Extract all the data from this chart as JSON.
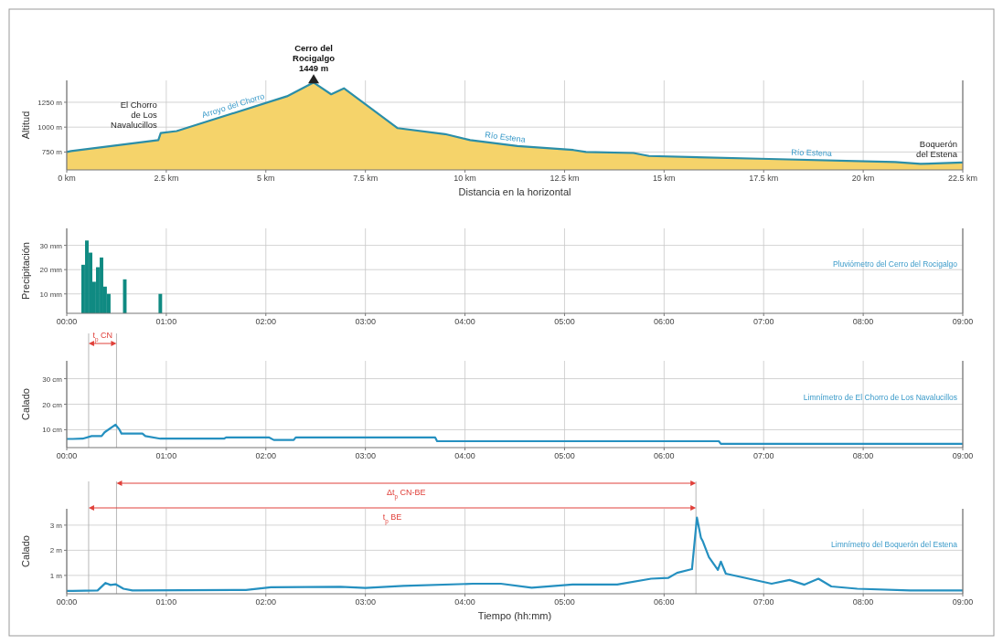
{
  "chart_data": [
    {
      "type": "area",
      "ylabel": "Altitud",
      "xlabel": "Distancia en la horizontal",
      "xlim": [
        0,
        22.5
      ],
      "ylim": [
        570,
        1470
      ],
      "xticks": [
        {
          "value": 0,
          "label": "0 km"
        },
        {
          "value": 2.5,
          "label": "2.5 km"
        },
        {
          "value": 5,
          "label": "5 km"
        },
        {
          "value": 7.5,
          "label": "7.5 km"
        },
        {
          "value": 10,
          "label": "10 km"
        },
        {
          "value": 12.5,
          "label": "12.5 km"
        },
        {
          "value": 15,
          "label": "15 km"
        },
        {
          "value": 17.5,
          "label": "17.5 km"
        },
        {
          "value": 20,
          "label": "20 km"
        },
        {
          "value": 22.5,
          "label": "22.5 km"
        }
      ],
      "yticks": [
        {
          "value": 750,
          "label": "750 m"
        },
        {
          "value": 1000,
          "label": "1000 m"
        },
        {
          "value": 1250,
          "label": "1250 m"
        }
      ],
      "grid": true,
      "x": [
        0,
        0.11,
        2.3,
        2.36,
        2.76,
        5.53,
        6.2,
        6.64,
        6.96,
        8.31,
        9.5,
        10.13,
        11.32,
        12.72,
        13.04,
        14.23,
        14.62,
        17.63,
        20.8,
        21.44,
        22.5
      ],
      "series": [
        {
          "color": "#f5d36a",
          "values": [
            750,
            760,
            870,
            940,
            960,
            1310,
            1449,
            1330,
            1390,
            990,
            930,
            870,
            810,
            770,
            750,
            740,
            710,
            680,
            650,
            630,
            645
          ]
        },
        {
          "type": "line",
          "color": "#2b8ea8",
          "values": [
            750,
            760,
            870,
            940,
            960,
            1310,
            1449,
            1330,
            1390,
            990,
            930,
            870,
            810,
            770,
            750,
            740,
            710,
            680,
            650,
            630,
            645
          ]
        }
      ],
      "annotations": [
        {
          "text": "Cerro del\nRocigalgo\n1449 m",
          "x": 6.2,
          "y": 1449
        },
        {
          "text": "El Chorro\nde Los\nNavalucillos",
          "x": 2.36,
          "y": 936
        },
        {
          "text": "Boquerón\ndel Estena",
          "x": 22.5,
          "y": 645
        },
        {
          "text": "Arroyo del Chorro",
          "x": 4.2,
          "y": 1145
        },
        {
          "text": "Río Estena",
          "x": 11.0,
          "y": 826
        },
        {
          "text": "Río Estena",
          "x": 18.7,
          "y": 669
        }
      ]
    },
    {
      "type": "bar",
      "ylabel": "Precipitación",
      "xlim": [
        0,
        9
      ],
      "ylim": [
        2,
        37
      ],
      "xticks": [
        {
          "value": 0,
          "label": "00:00"
        },
        {
          "value": 1,
          "label": "01:00"
        },
        {
          "value": 2,
          "label": "02:00"
        },
        {
          "value": 3,
          "label": "03:00"
        },
        {
          "value": 4,
          "label": "04:00"
        },
        {
          "value": 5,
          "label": "05:00"
        },
        {
          "value": 6,
          "label": "06:00"
        },
        {
          "value": 7,
          "label": "07:00"
        },
        {
          "value": 8,
          "label": "08:00"
        },
        {
          "value": 9,
          "label": "09:00"
        }
      ],
      "yticks": [
        {
          "value": 10,
          "label": "10 mm"
        },
        {
          "value": 20,
          "label": "20 mm"
        },
        {
          "value": 30,
          "label": "30 mm"
        }
      ],
      "grid": true,
      "x": [
        0.165,
        0.202,
        0.239,
        0.275,
        0.312,
        0.349,
        0.385,
        0.422,
        0.583,
        0.94
      ],
      "series": [
        {
          "name": "Pluviómetro del Cerro del Rocigalgo",
          "color": "#0f8a82",
          "values": [
            22,
            32,
            27,
            15,
            21,
            25,
            13,
            10,
            16,
            10
          ]
        }
      ]
    },
    {
      "type": "line",
      "ylabel": "Calado",
      "xlim": [
        0,
        9
      ],
      "ylim": [
        3,
        37
      ],
      "xticks": [
        {
          "value": 0,
          "label": "00:00"
        },
        {
          "value": 1,
          "label": "01:00"
        },
        {
          "value": 2,
          "label": "02:00"
        },
        {
          "value": 3,
          "label": "03:00"
        },
        {
          "value": 4,
          "label": "04:00"
        },
        {
          "value": 5,
          "label": "05:00"
        },
        {
          "value": 6,
          "label": "06:00"
        },
        {
          "value": 7,
          "label": "07:00"
        },
        {
          "value": 8,
          "label": "08:00"
        },
        {
          "value": 9,
          "label": "09:00"
        }
      ],
      "yticks": [
        {
          "value": 10,
          "label": "10 cm"
        },
        {
          "value": 20,
          "label": "20 cm"
        },
        {
          "value": 30,
          "label": "30 cm"
        }
      ],
      "grid": true,
      "x": [
        0,
        0.06,
        0.16,
        0.25,
        0.35,
        0.38,
        0.49,
        0.53,
        0.55,
        0.76,
        0.79,
        0.94,
        1.58,
        1.6,
        2.03,
        2.08,
        2.28,
        2.3,
        3.7,
        3.72,
        6.55,
        6.57,
        9
      ],
      "series": [
        {
          "name": "Limnímetro de El Chorro de Los Navalucillos",
          "color": "#2590c0",
          "values": [
            6.4,
            6.4,
            6.5,
            7.5,
            7.5,
            9,
            12,
            10,
            8.5,
            8.5,
            7.5,
            6.5,
            6.5,
            7,
            7,
            6,
            6,
            7,
            7,
            5.5,
            5.5,
            4.5,
            4.5
          ]
        }
      ],
      "ref_lines": [
        {
          "axis": "x",
          "value": 0.22,
          "color": "#b0b0b0"
        },
        {
          "axis": "x",
          "value": 0.5,
          "color": "#b0b0b0"
        }
      ],
      "annotations": [
        "t$_{p}$ CN"
      ]
    },
    {
      "type": "line",
      "ylabel": "Calado",
      "xlabel": "Tiempo (hh:mm)",
      "xlim": [
        0,
        9
      ],
      "ylim": [
        0.27,
        3.65
      ],
      "xticks": [
        {
          "value": 0,
          "label": "00:00"
        },
        {
          "value": 1,
          "label": "01:00"
        },
        {
          "value": 2,
          "label": "02:00"
        },
        {
          "value": 3,
          "label": "03:00"
        },
        {
          "value": 4,
          "label": "04:00"
        },
        {
          "value": 5,
          "label": "05:00"
        },
        {
          "value": 6,
          "label": "06:00"
        },
        {
          "value": 7,
          "label": "07:00"
        },
        {
          "value": 8,
          "label": "08:00"
        },
        {
          "value": 9,
          "label": "09:00"
        }
      ],
      "yticks": [
        {
          "value": 1,
          "label": "1 m"
        },
        {
          "value": 2,
          "label": "2 m"
        },
        {
          "value": 3,
          "label": "3 m"
        }
      ],
      "grid": true,
      "x": [
        0,
        0.06,
        0.31,
        0.39,
        0.44,
        0.49,
        0.57,
        0.66,
        1.8,
        2.05,
        2.75,
        3.0,
        3.38,
        4.08,
        4.36,
        4.67,
        5.08,
        5.53,
        5.87,
        6.04,
        6.13,
        6.28,
        6.33,
        6.37,
        6.39,
        6.45,
        6.54,
        6.57,
        6.62,
        7.08,
        7.26,
        7.41,
        7.55,
        7.68,
        7.94,
        8.47,
        9
      ],
      "series": [
        {
          "name": "Limnímetro del Boquerón del Estena",
          "color": "#2590c0",
          "values": [
            0.38,
            0.38,
            0.4,
            0.7,
            0.62,
            0.65,
            0.47,
            0.4,
            0.42,
            0.53,
            0.55,
            0.5,
            0.58,
            0.67,
            0.67,
            0.51,
            0.64,
            0.64,
            0.87,
            0.9,
            1.1,
            1.25,
            3.3,
            2.5,
            2.35,
            1.73,
            1.22,
            1.55,
            1.07,
            0.67,
            0.82,
            0.63,
            0.87,
            0.56,
            0.47,
            0.4,
            0.4
          ]
        }
      ],
      "ref_lines": [
        {
          "axis": "x",
          "value": 0.22,
          "color": "#b0b0b0"
        },
        {
          "axis": "x",
          "value": 0.5,
          "color": "#b0b0b0"
        },
        {
          "axis": "x",
          "value": 6.32,
          "color": "#b0b0b0"
        }
      ],
      "annotations": [
        "Δt$_{p}$ CN-BE",
        "t$_{p}$ BE"
      ]
    }
  ]
}
